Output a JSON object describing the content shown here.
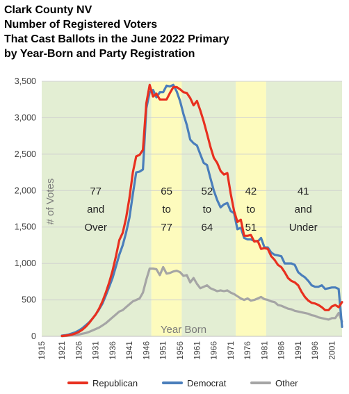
{
  "chart_data": {
    "type": "line",
    "title": [
      "Clark County NV",
      "Number of Registered Voters",
      "That Cast Ballots in the June 2022 Primary",
      "by Year-Born and Party Registration"
    ],
    "xlabel": "Year Born",
    "ylabel": "# of Votes",
    "xlim": [
      1915,
      2004
    ],
    "ylim": [
      0,
      3500
    ],
    "x_ticks": [
      1915,
      1921,
      1926,
      1931,
      1936,
      1941,
      1946,
      1951,
      1956,
      1961,
      1966,
      1971,
      1976,
      1981,
      1986,
      1991,
      1996,
      2001
    ],
    "y_ticks": [
      0,
      500,
      1000,
      1500,
      2000,
      2500,
      3000,
      3500
    ],
    "y_tick_labels": [
      "0",
      "500",
      "1,000",
      "1,500",
      "2,000",
      "2,500",
      "3,000",
      "3,500"
    ],
    "grid": "horizontal",
    "legend_position": "bottom",
    "bands": [
      {
        "from": 1915,
        "to": 1947.5,
        "color": "#e3eed3",
        "label": [
          "77",
          "and",
          "Over"
        ],
        "label_x": 1931
      },
      {
        "from": 1947.5,
        "to": 1956.5,
        "color": "#fdfbbd",
        "label": [
          "65",
          "to",
          "77"
        ],
        "label_x": 1952
      },
      {
        "from": 1956.5,
        "to": 1972.5,
        "color": "#e3eed3",
        "label": [
          "52",
          "to",
          "64"
        ],
        "label_x": 1964
      },
      {
        "from": 1972.5,
        "to": 1981.5,
        "color": "#fdfbbd",
        "label": [
          "42",
          "to",
          "51"
        ],
        "label_x": 1977
      },
      {
        "from": 1981.5,
        "to": 2004,
        "color": "#e3eed3",
        "label": [
          "41",
          "and",
          "Under"
        ],
        "label_x": 1992.5
      }
    ],
    "x": [
      1921,
      1922,
      1923,
      1924,
      1925,
      1926,
      1927,
      1928,
      1929,
      1930,
      1931,
      1932,
      1933,
      1934,
      1935,
      1936,
      1937,
      1938,
      1939,
      1940,
      1941,
      1942,
      1943,
      1944,
      1945,
      1946,
      1947,
      1948,
      1949,
      1950,
      1951,
      1952,
      1953,
      1954,
      1955,
      1956,
      1957,
      1958,
      1959,
      1960,
      1961,
      1962,
      1963,
      1964,
      1965,
      1966,
      1967,
      1968,
      1969,
      1970,
      1971,
      1972,
      1973,
      1974,
      1975,
      1976,
      1977,
      1978,
      1979,
      1980,
      1981,
      1982,
      1983,
      1984,
      1985,
      1986,
      1987,
      1988,
      1989,
      1990,
      1991,
      1992,
      1993,
      1994,
      1995,
      1996,
      1997,
      1998,
      1999,
      2000,
      2001,
      2002,
      2003,
      2004
    ],
    "series": [
      {
        "name": "Republican",
        "color": "#e8301f",
        "values": [
          5,
          10,
          15,
          25,
          40,
          60,
          90,
          130,
          180,
          240,
          300,
          380,
          480,
          600,
          740,
          900,
          1100,
          1320,
          1420,
          1620,
          1900,
          2250,
          2470,
          2490,
          2560,
          3200,
          3450,
          3290,
          3330,
          3250,
          3250,
          3250,
          3340,
          3420,
          3420,
          3390,
          3350,
          3340,
          3270,
          3170,
          3230,
          3100,
          2950,
          2780,
          2600,
          2450,
          2380,
          2270,
          2220,
          2240,
          1960,
          1720,
          1570,
          1600,
          1380,
          1380,
          1390,
          1300,
          1310,
          1200,
          1210,
          1200,
          1100,
          1050,
          980,
          950,
          880,
          800,
          760,
          740,
          700,
          610,
          540,
          490,
          460,
          450,
          430,
          400,
          360,
          360,
          410,
          430,
          400,
          470
        ]
      },
      {
        "name": "Democrat",
        "color": "#4a7ebb",
        "values": [
          10,
          15,
          25,
          40,
          55,
          80,
          110,
          150,
          190,
          240,
          300,
          370,
          450,
          560,
          680,
          800,
          960,
          1120,
          1250,
          1420,
          1630,
          1950,
          2250,
          2260,
          2290,
          3130,
          3350,
          3380,
          3280,
          3350,
          3350,
          3440,
          3430,
          3450,
          3360,
          3230,
          3050,
          2900,
          2700,
          2650,
          2620,
          2500,
          2380,
          2350,
          2170,
          2000,
          1870,
          1770,
          1810,
          1830,
          1720,
          1690,
          1470,
          1490,
          1350,
          1330,
          1330,
          1310,
          1300,
          1350,
          1220,
          1220,
          1150,
          1120,
          1110,
          1100,
          1000,
          1000,
          1000,
          980,
          880,
          840,
          810,
          760,
          700,
          680,
          680,
          700,
          650,
          660,
          670,
          670,
          650,
          130
        ]
      },
      {
        "name": "Other",
        "color": "#a5a5a5",
        "values": [
          2,
          5,
          8,
          12,
          18,
          25,
          35,
          45,
          60,
          80,
          100,
          120,
          150,
          180,
          220,
          260,
          300,
          340,
          360,
          400,
          440,
          480,
          500,
          520,
          600,
          780,
          930,
          930,
          920,
          840,
          950,
          860,
          870,
          890,
          900,
          880,
          830,
          840,
          740,
          800,
          720,
          660,
          680,
          700,
          660,
          640,
          620,
          630,
          620,
          630,
          600,
          580,
          550,
          520,
          500,
          520,
          490,
          500,
          520,
          540,
          510,
          500,
          480,
          470,
          430,
          420,
          400,
          380,
          370,
          350,
          340,
          330,
          320,
          310,
          290,
          280,
          260,
          250,
          240,
          230,
          250,
          250,
          320,
          200
        ]
      }
    ]
  }
}
